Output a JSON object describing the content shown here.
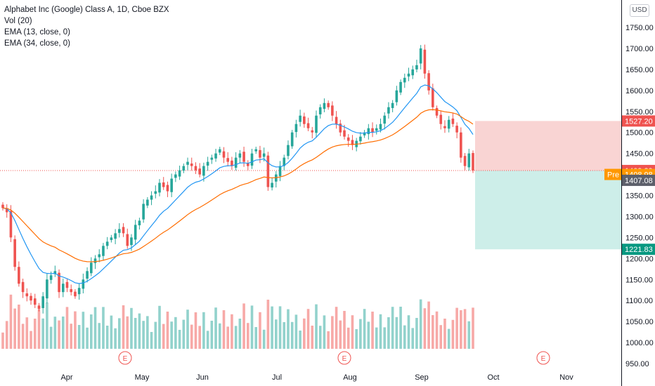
{
  "legend": {
    "title": "Alphabet Inc (Google) Class A, 1D, Cboe BZX",
    "vol": "Vol (20)",
    "ema13": "EMA (13, close, 0)",
    "ema34": "EMA (34, close, 0)"
  },
  "currency_button": "USD",
  "price_tags": {
    "target": "1527.20",
    "last": "1409.39",
    "pre_label": "Pre",
    "pre_value": "1408.98",
    "dark": "1407.08",
    "stop": "1221.83"
  },
  "colors": {
    "up": "#26a69a",
    "down": "#ef5350",
    "ema13": "#2196f3",
    "ema34": "#ff6d00",
    "target_zone": "#f9d4d3",
    "stop_zone": "#cdeee9",
    "pre_tag": "#ff9800",
    "dark_tag": "#5d606b"
  },
  "chart_data": {
    "type": "candlestick",
    "title": "Alphabet Inc (Google) Class A, 1D, Cboe BZX",
    "y_axis": {
      "ticks": [
        "1750.00",
        "1700.00",
        "1650.00",
        "1600.00",
        "1550.00",
        "1500.00",
        "1450.00",
        "1400.00",
        "1350.00",
        "1300.00",
        "1250.00",
        "1200.00",
        "1150.00",
        "1100.00",
        "1050.00",
        "1000.00",
        "950.00"
      ],
      "ylim": [
        940,
        1790
      ]
    },
    "x_axis": {
      "labels": [
        "Apr",
        "May",
        "Jun",
        "Jul",
        "Aug",
        "Sep",
        "Oct",
        "Nov"
      ]
    },
    "earnings_markers": [
      "E",
      "E",
      "E"
    ],
    "closes_approx": [
      1320,
      1310,
      1250,
      1180,
      1140,
      1120,
      1110,
      1100,
      1090,
      1080,
      1110,
      1150,
      1160,
      1170,
      1120,
      1140,
      1130,
      1120,
      1110,
      1130,
      1150,
      1170,
      1190,
      1200,
      1210,
      1230,
      1240,
      1250,
      1260,
      1270,
      1260,
      1230,
      1250,
      1280,
      1290,
      1330,
      1340,
      1350,
      1360,
      1380,
      1370,
      1360,
      1390,
      1400,
      1410,
      1420,
      1430,
      1420,
      1410,
      1400,
      1420,
      1430,
      1440,
      1450,
      1460,
      1440,
      1430,
      1420,
      1440,
      1450,
      1430,
      1420,
      1450,
      1460,
      1440,
      1450,
      1370,
      1380,
      1400,
      1420,
      1440,
      1470,
      1500,
      1520,
      1540,
      1520,
      1510,
      1500,
      1540,
      1560,
      1570,
      1560,
      1540,
      1520,
      1500,
      1490,
      1480,
      1470,
      1480,
      1490,
      1500,
      1510,
      1500,
      1510,
      1520,
      1540,
      1560,
      1570,
      1600,
      1620,
      1630,
      1640,
      1650,
      1660,
      1700,
      1640,
      1600,
      1560,
      1540,
      1520,
      1510,
      1530,
      1520,
      1500,
      1440,
      1420,
      1450,
      1409.39
    ],
    "ema_13_end": 1490,
    "ema_34_end": 1520,
    "volume_note": "Vol (20)"
  }
}
